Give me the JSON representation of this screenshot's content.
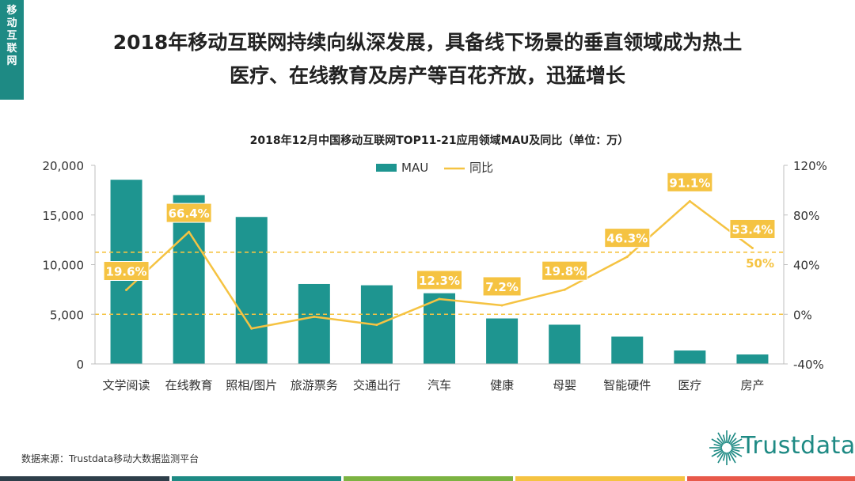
{
  "side_tab": {
    "label": "移动互联网"
  },
  "header": {
    "line1": "2018年移动互联网持续向纵深发展，具备线下场景的垂直领域成为热土",
    "line2": "医疗、在线教育及房产等百花齐放，迅猛增长"
  },
  "footer": {
    "source": "数据来源：Trustdata移动大数据监测平台",
    "logo_text": "Trustdata"
  },
  "colors": {
    "bar": "#1e9590",
    "line": "#f5c342",
    "label_bg": "#f5c342",
    "accent": "#1e8a84"
  },
  "chart_data": {
    "type": "bar",
    "title": "2018年12月中国移动互联网TOP11-21应用领域MAU及同比（单位：万）",
    "categories": [
      "文学阅读",
      "在线教育",
      "照相/图片",
      "旅游票务",
      "交通出行",
      "汽车",
      "健康",
      "母婴",
      "智能硬件",
      "医疗",
      "房产"
    ],
    "series": [
      {
        "name": "MAU",
        "type": "bar",
        "axis": "left",
        "values": [
          18550,
          17000,
          14800,
          8050,
          7920,
          7120,
          4580,
          3950,
          2750,
          1350,
          950
        ]
      },
      {
        "name": "同比",
        "type": "line",
        "axis": "right",
        "values": [
          19.6,
          66.4,
          -11.5,
          -2.0,
          -8.5,
          12.3,
          7.2,
          19.8,
          46.3,
          91.1,
          53.4
        ],
        "labels": [
          "19.6%",
          "66.4%",
          null,
          null,
          null,
          "12.3%",
          "7.2%",
          "19.8%",
          "46.3%",
          "91.1%",
          "53.4%"
        ]
      }
    ],
    "y_left": {
      "min": 0,
      "max": 20000,
      "ticks": [
        0,
        5000,
        10000,
        15000,
        20000
      ],
      "tick_labels": [
        "0",
        "5,000",
        "10,000",
        "15,000",
        "20,000"
      ]
    },
    "y_right": {
      "min": -40,
      "max": 120,
      "ticks": [
        -40,
        0,
        40,
        80,
        120
      ],
      "tick_labels": [
        "-40%",
        "0%",
        "40%",
        "80%",
        "120%"
      ]
    },
    "reference_lines": [
      {
        "axis": "right",
        "value": 0
      },
      {
        "axis": "right",
        "value": 50,
        "label": "50%"
      }
    ],
    "legend": [
      "MAU",
      "同比"
    ],
    "legend_position": "top-center"
  }
}
